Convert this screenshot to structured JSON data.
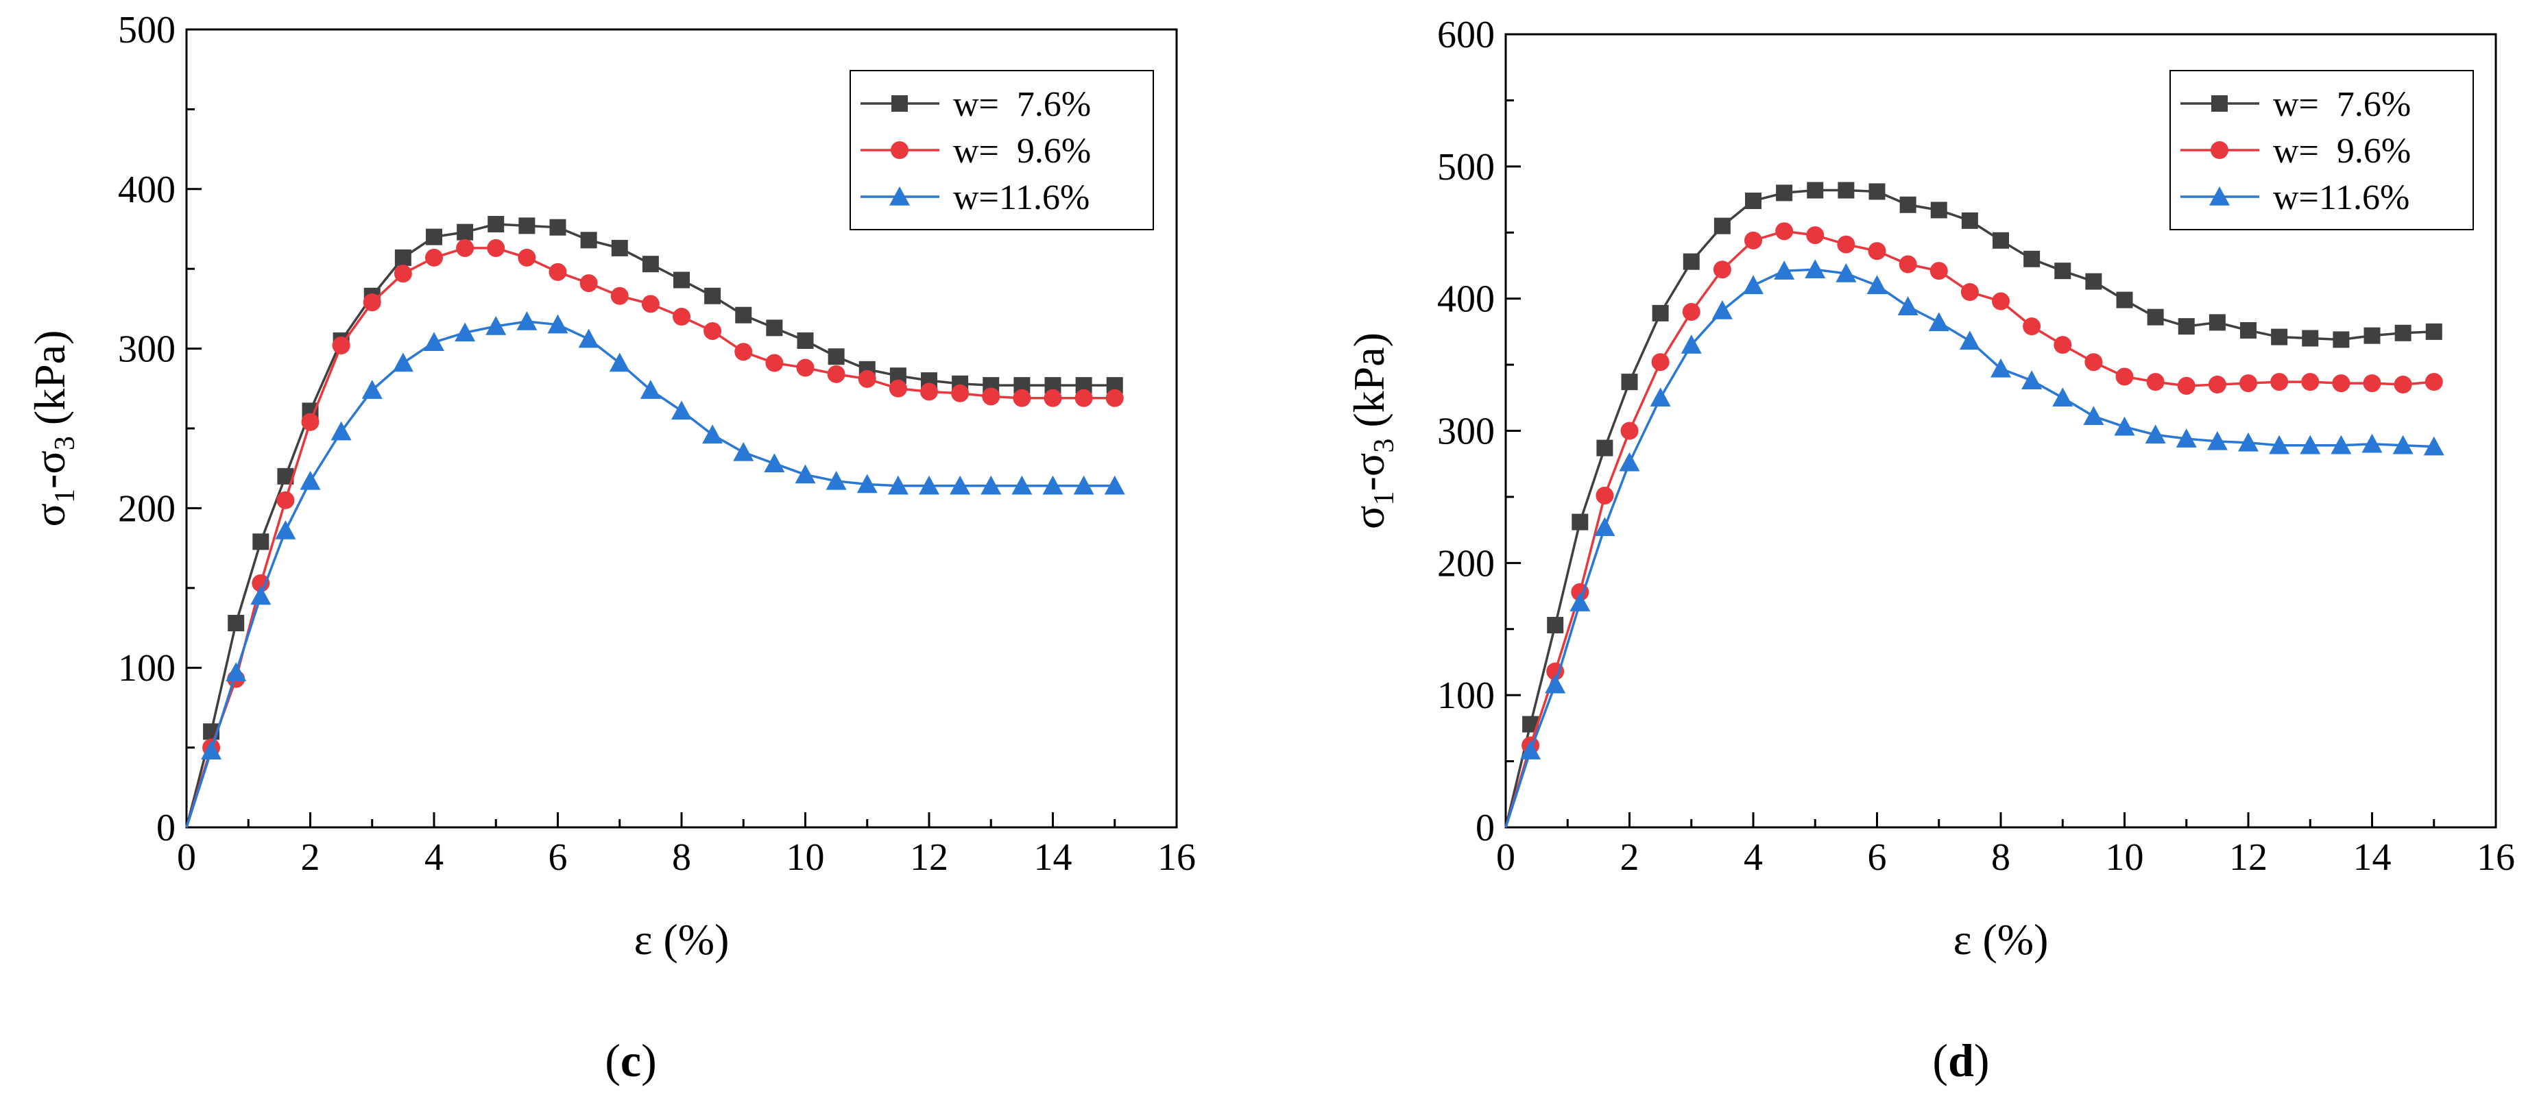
{
  "chart_data": [
    {
      "type": "line",
      "panel_label": "c",
      "xlabel": "ε (%)",
      "ylabel": "σ1-σ3 (kPa)",
      "xlim": [
        0,
        16
      ],
      "ylim": [
        0,
        500
      ],
      "xticks": [
        "0",
        "2",
        "4",
        "6",
        "8",
        "10",
        "12",
        "14",
        "16"
      ],
      "yticks": [
        "0",
        "100",
        "200",
        "300",
        "400",
        "500"
      ],
      "legend_position": "top-right",
      "grid": false,
      "series": [
        {
          "name": "w=  7.6%",
          "color": "#404040",
          "marker": "square",
          "x": [
            0,
            0.4,
            0.8,
            1.2,
            1.6,
            2.0,
            2.5,
            3.0,
            3.5,
            4.0,
            4.5,
            5.0,
            5.5,
            6.0,
            6.5,
            7.0,
            7.5,
            8.0,
            8.5,
            9.0,
            9.5,
            10.0,
            10.5,
            11.0,
            11.5,
            12.0,
            12.5,
            13.0,
            13.5,
            14.0,
            14.5,
            15.0
          ],
          "y": [
            0,
            60,
            128,
            179,
            220,
            261,
            305,
            333,
            357,
            370,
            373,
            378,
            377,
            376,
            368,
            363,
            353,
            343,
            333,
            321,
            313,
            305,
            295,
            287,
            283,
            280,
            278,
            277,
            277,
            277,
            277,
            277
          ]
        },
        {
          "name": "w=  9.6%",
          "color": "#e8383d",
          "marker": "circle",
          "x": [
            0,
            0.4,
            0.8,
            1.2,
            1.6,
            2.0,
            2.5,
            3.0,
            3.5,
            4.0,
            4.5,
            5.0,
            5.5,
            6.0,
            6.5,
            7.0,
            7.5,
            8.0,
            8.5,
            9.0,
            9.5,
            10.0,
            10.5,
            11.0,
            11.5,
            12.0,
            12.5,
            13.0,
            13.5,
            14.0,
            14.5,
            15.0
          ],
          "y": [
            0,
            50,
            93,
            153,
            205,
            254,
            302,
            329,
            347,
            357,
            363,
            363,
            357,
            348,
            341,
            333,
            328,
            320,
            311,
            298,
            291,
            288,
            284,
            281,
            275,
            273,
            272,
            270,
            269,
            269,
            269,
            269
          ]
        },
        {
          "name": "w=11.6%",
          "color": "#2a78d6",
          "marker": "triangle",
          "x": [
            0,
            0.4,
            0.8,
            1.2,
            1.6,
            2.0,
            2.5,
            3.0,
            3.5,
            4.0,
            4.5,
            5.0,
            5.5,
            6.0,
            6.5,
            7.0,
            7.5,
            8.0,
            8.5,
            9.0,
            9.5,
            10.0,
            10.5,
            11.0,
            11.5,
            12.0,
            12.5,
            13.0,
            13.5,
            14.0,
            14.5,
            15.0
          ],
          "y": [
            0,
            48,
            97,
            145,
            186,
            217,
            248,
            274,
            291,
            304,
            310,
            314,
            317,
            315,
            306,
            291,
            274,
            261,
            246,
            235,
            228,
            221,
            217,
            215,
            214,
            214,
            214,
            214,
            214,
            214,
            214,
            214
          ]
        }
      ]
    },
    {
      "type": "line",
      "panel_label": "d",
      "xlabel": "ε (%)",
      "ylabel": "σ1-σ3 (kPa)",
      "xlim": [
        0,
        16
      ],
      "ylim": [
        0,
        600
      ],
      "xticks": [
        "0",
        "2",
        "4",
        "6",
        "8",
        "10",
        "12",
        "14",
        "16"
      ],
      "yticks": [
        "0",
        "100",
        "200",
        "300",
        "400",
        "500",
        "600"
      ],
      "legend_position": "top-right",
      "grid": false,
      "series": [
        {
          "name": "w=  7.6%",
          "color": "#404040",
          "marker": "square",
          "x": [
            0,
            0.4,
            0.8,
            1.2,
            1.6,
            2.0,
            2.5,
            3.0,
            3.5,
            4.0,
            4.5,
            5.0,
            5.5,
            6.0,
            6.5,
            7.0,
            7.5,
            8.0,
            8.5,
            9.0,
            9.5,
            10.0,
            10.5,
            11.0,
            11.5,
            12.0,
            12.5,
            13.0,
            13.5,
            14.0,
            14.5,
            15.0
          ],
          "y": [
            0,
            78,
            153,
            231,
            287,
            337,
            389,
            428,
            455,
            474,
            480,
            482,
            482,
            481,
            471,
            467,
            459,
            444,
            430,
            421,
            413,
            399,
            386,
            379,
            382,
            376,
            371,
            370,
            369,
            372,
            374,
            375
          ]
        },
        {
          "name": "w=  9.6%",
          "color": "#e8383d",
          "marker": "circle",
          "x": [
            0,
            0.4,
            0.8,
            1.2,
            1.6,
            2.0,
            2.5,
            3.0,
            3.5,
            4.0,
            4.5,
            5.0,
            5.5,
            6.0,
            6.5,
            7.0,
            7.5,
            8.0,
            8.5,
            9.0,
            9.5,
            10.0,
            10.5,
            11.0,
            11.5,
            12.0,
            12.5,
            13.0,
            13.5,
            14.0,
            14.5,
            15.0
          ],
          "y": [
            0,
            62,
            118,
            178,
            251,
            300,
            352,
            390,
            422,
            444,
            451,
            448,
            441,
            436,
            426,
            421,
            405,
            398,
            379,
            365,
            352,
            341,
            337,
            334,
            335,
            336,
            337,
            337,
            336,
            336,
            335,
            337
          ]
        },
        {
          "name": "w=11.6%",
          "color": "#2a78d6",
          "marker": "triangle",
          "x": [
            0,
            0.4,
            0.8,
            1.2,
            1.6,
            2.0,
            2.5,
            3.0,
            3.5,
            4.0,
            4.5,
            5.0,
            5.5,
            6.0,
            6.5,
            7.0,
            7.5,
            8.0,
            8.5,
            9.0,
            9.5,
            10.0,
            10.5,
            11.0,
            11.5,
            12.0,
            12.5,
            13.0,
            13.5,
            14.0,
            14.5,
            15.0
          ],
          "y": [
            0,
            58,
            108,
            170,
            227,
            276,
            325,
            365,
            391,
            410,
            421,
            422,
            419,
            410,
            394,
            382,
            368,
            347,
            338,
            325,
            311,
            303,
            297,
            294,
            292,
            291,
            289,
            289,
            289,
            290,
            289,
            288
          ]
        }
      ]
    }
  ]
}
